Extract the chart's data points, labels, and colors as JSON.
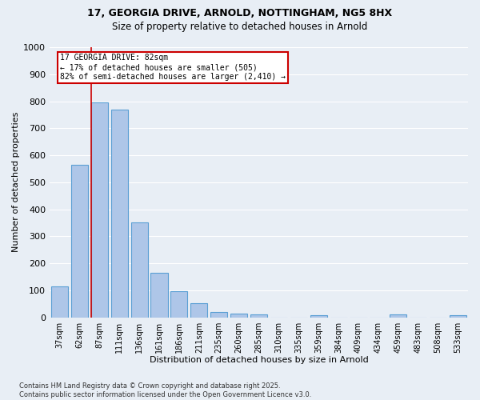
{
  "title_line1": "17, GEORGIA DRIVE, ARNOLD, NOTTINGHAM, NG5 8HX",
  "title_line2": "Size of property relative to detached houses in Arnold",
  "xlabel": "Distribution of detached houses by size in Arnold",
  "ylabel": "Number of detached properties",
  "categories": [
    "37sqm",
    "62sqm",
    "87sqm",
    "111sqm",
    "136sqm",
    "161sqm",
    "186sqm",
    "211sqm",
    "235sqm",
    "260sqm",
    "285sqm",
    "310sqm",
    "335sqm",
    "359sqm",
    "384sqm",
    "409sqm",
    "434sqm",
    "459sqm",
    "483sqm",
    "508sqm",
    "533sqm"
  ],
  "values": [
    115,
    565,
    795,
    770,
    350,
    165,
    97,
    52,
    20,
    14,
    10,
    0,
    0,
    7,
    0,
    0,
    0,
    10,
    0,
    0,
    7
  ],
  "bar_color": "#aec6e8",
  "bar_edge_color": "#5a9fd4",
  "vline_color": "#cc0000",
  "vline_x_index": 1.6,
  "annotation_box_text": "17 GEORGIA DRIVE: 82sqm\n← 17% of detached houses are smaller (505)\n82% of semi-detached houses are larger (2,410) →",
  "annotation_box_color": "#cc0000",
  "annotation_box_facecolor": "white",
  "background_color": "#e8eef5",
  "grid_color": "white",
  "footnote": "Contains HM Land Registry data © Crown copyright and database right 2025.\nContains public sector information licensed under the Open Government Licence v3.0.",
  "ylim": [
    0,
    1000
  ],
  "yticks": [
    0,
    100,
    200,
    300,
    400,
    500,
    600,
    700,
    800,
    900,
    1000
  ]
}
